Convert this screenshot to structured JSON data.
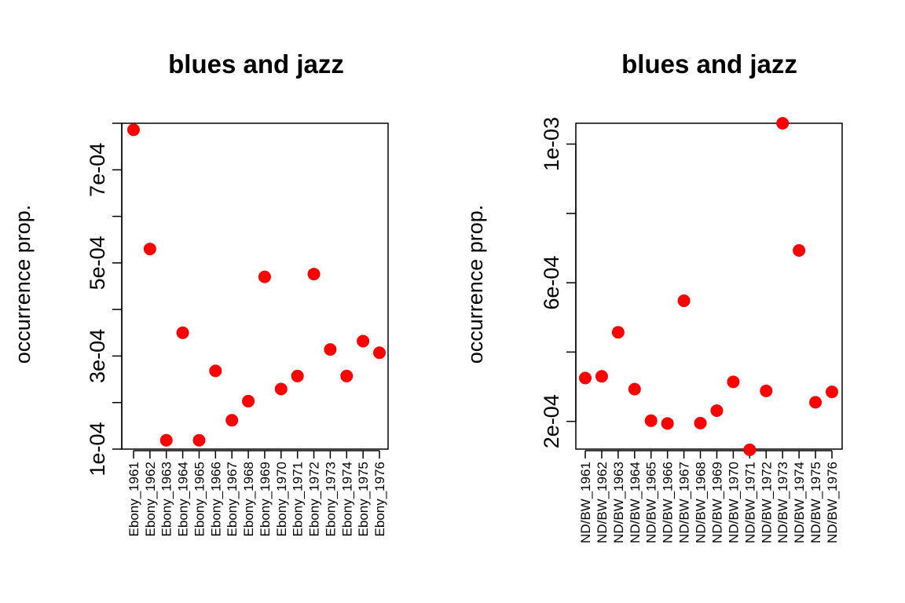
{
  "chart_data": [
    {
      "type": "scatter",
      "title": "blues and jazz",
      "ylabel": "occurrence prop.",
      "xlabel": "",
      "categories": [
        "Ebony_1961",
        "Ebony_1962",
        "Ebony_1963",
        "Ebony_1964",
        "Ebony_1965",
        "Ebony_1966",
        "Ebony_1967",
        "Ebony_1968",
        "Ebony_1969",
        "Ebony_1970",
        "Ebony_1971",
        "Ebony_1972",
        "Ebony_1973",
        "Ebony_1974",
        "Ebony_1975",
        "Ebony_1976"
      ],
      "values": [
        0.000786,
        0.00053,
        0.000119,
        0.00035,
        0.000119,
        0.000268,
        0.000162,
        0.000203,
        0.00047,
        0.000229,
        0.000257,
        0.000476,
        0.000314,
        0.000257,
        0.000332,
        0.000307
      ],
      "ylim": [
        0.0001,
        0.0008
      ],
      "yticks": [
        0.0001,
        0.0002,
        0.0003,
        0.0004,
        0.0005,
        0.0006,
        0.0007,
        0.0008
      ],
      "ytick_labels": [
        "1e-04",
        "",
        "3e-04",
        "",
        "5e-04",
        "",
        "7e-04",
        ""
      ],
      "marker_color": "#ff0000"
    },
    {
      "type": "scatter",
      "title": "blues and jazz",
      "ylabel": "occurrence prop.",
      "xlabel": "",
      "categories": [
        "ND/BW_1961",
        "ND/BW_1962",
        "ND/BW_1963",
        "ND/BW_1964",
        "ND/BW_1965",
        "ND/BW_1966",
        "ND/BW_1967",
        "ND/BW_1968",
        "ND/BW_1969",
        "ND/BW_1970",
        "ND/BW_1971",
        "ND/BW_1972",
        "ND/BW_1973",
        "ND/BW_1974",
        "ND/BW_1975",
        "ND/BW_1976"
      ],
      "values": [
        0.000325,
        0.00033,
        0.000457,
        0.000293,
        0.000202,
        0.000194,
        0.000548,
        0.000195,
        0.000231,
        0.000314,
        0.000118,
        0.000288,
        0.00106,
        0.000693,
        0.000255,
        0.000285
      ],
      "ylim": [
        0.00012,
        0.00106
      ],
      "yticks": [
        0.0002,
        0.0004,
        0.0006,
        0.0008,
        0.001
      ],
      "ytick_labels": [
        "2e-04",
        "",
        "6e-04",
        "",
        "1e-03"
      ],
      "marker_color": "#ff0000"
    }
  ]
}
